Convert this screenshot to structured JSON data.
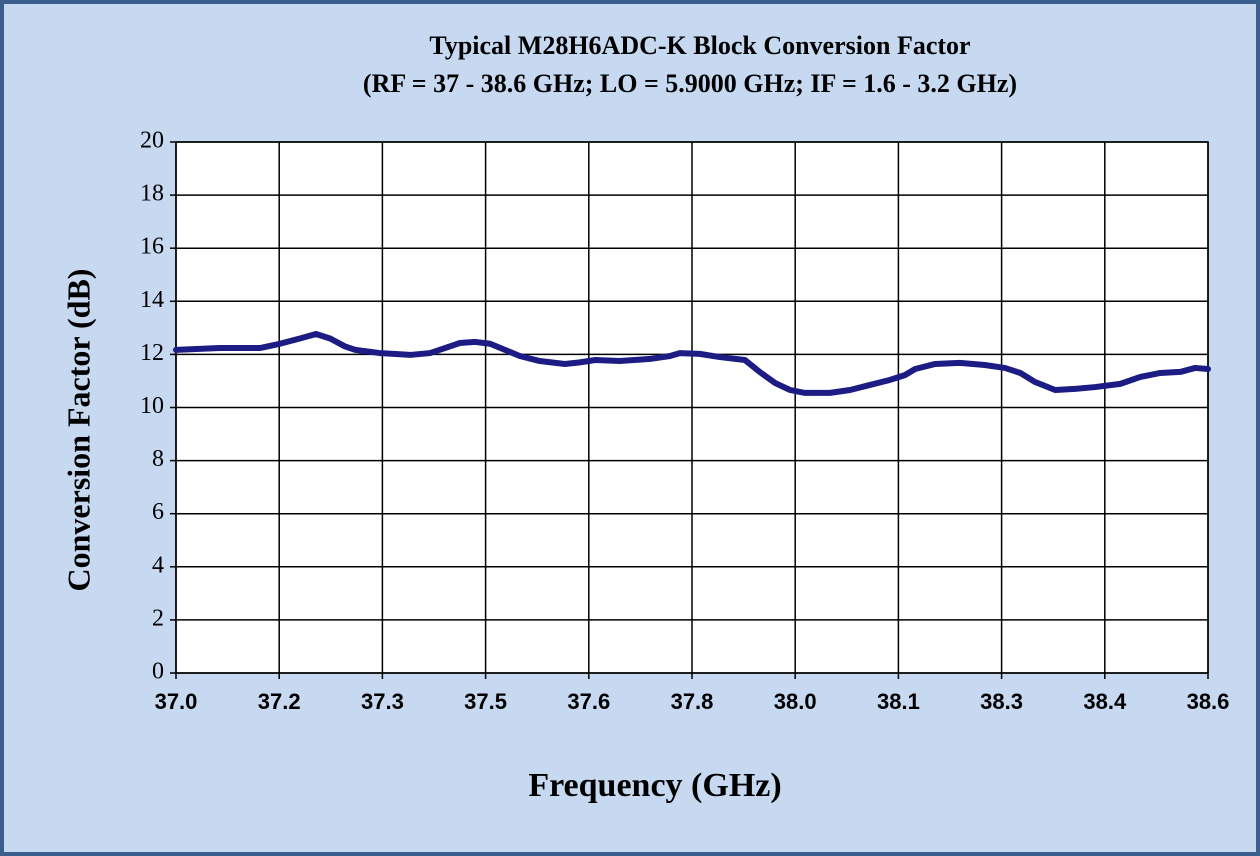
{
  "chart_data": {
    "type": "line",
    "title": "Typical M28H6ADC-K Block Conversion Factor",
    "subtitle": "(RF  = 37 - 38.6 GHz; LO = 5.9000 GHz; IF = 1.6 - 3.2 GHz)",
    "xlabel": "Frequency  (GHz)",
    "ylabel": "Conversion  Factor (dB)",
    "color": "#1c1c84",
    "grid": true,
    "xlim": [
      37.0,
      38.6
    ],
    "ylim": [
      0,
      20
    ],
    "xticks": [
      {
        "value": 37.0,
        "label": "37.0"
      },
      {
        "value": 37.16,
        "label": "37.2"
      },
      {
        "value": 37.32,
        "label": "37.3"
      },
      {
        "value": 37.48,
        "label": "37.5"
      },
      {
        "value": 37.64,
        "label": "37.6"
      },
      {
        "value": 37.8,
        "label": "37.8"
      },
      {
        "value": 37.96,
        "label": "38.0"
      },
      {
        "value": 38.12,
        "label": "38.1"
      },
      {
        "value": 38.28,
        "label": "38.3"
      },
      {
        "value": 38.44,
        "label": "38.4"
      },
      {
        "value": 38.6,
        "label": "38.6"
      }
    ],
    "yticks": [
      0,
      2,
      4,
      6,
      8,
      10,
      12,
      14,
      16,
      18,
      20
    ],
    "x": [
      37.0,
      37.068,
      37.13,
      37.161,
      37.192,
      37.217,
      37.239,
      37.262,
      37.278,
      37.316,
      37.363,
      37.394,
      37.417,
      37.44,
      37.464,
      37.487,
      37.51,
      37.533,
      37.564,
      37.603,
      37.626,
      37.65,
      37.688,
      37.735,
      37.766,
      37.781,
      37.812,
      37.843,
      37.882,
      37.905,
      37.929,
      37.952,
      37.975,
      38.014,
      38.045,
      38.076,
      38.107,
      38.13,
      38.146,
      38.177,
      38.215,
      38.254,
      38.285,
      38.309,
      38.332,
      38.363,
      38.394,
      38.425,
      38.464,
      38.495,
      38.526,
      38.557,
      38.58,
      38.6
    ],
    "values": [
      12.17,
      12.24,
      12.24,
      12.4,
      12.6,
      12.77,
      12.6,
      12.3,
      12.17,
      12.05,
      11.98,
      12.05,
      12.24,
      12.43,
      12.47,
      12.4,
      12.17,
      11.94,
      11.75,
      11.64,
      11.7,
      11.79,
      11.75,
      11.83,
      11.94,
      12.05,
      12.02,
      11.9,
      11.79,
      11.34,
      10.92,
      10.66,
      10.55,
      10.55,
      10.66,
      10.85,
      11.04,
      11.22,
      11.45,
      11.64,
      11.68,
      11.6,
      11.49,
      11.3,
      10.96,
      10.66,
      10.7,
      10.77,
      10.89,
      11.15,
      11.3,
      11.34,
      11.49,
      11.45
    ]
  }
}
